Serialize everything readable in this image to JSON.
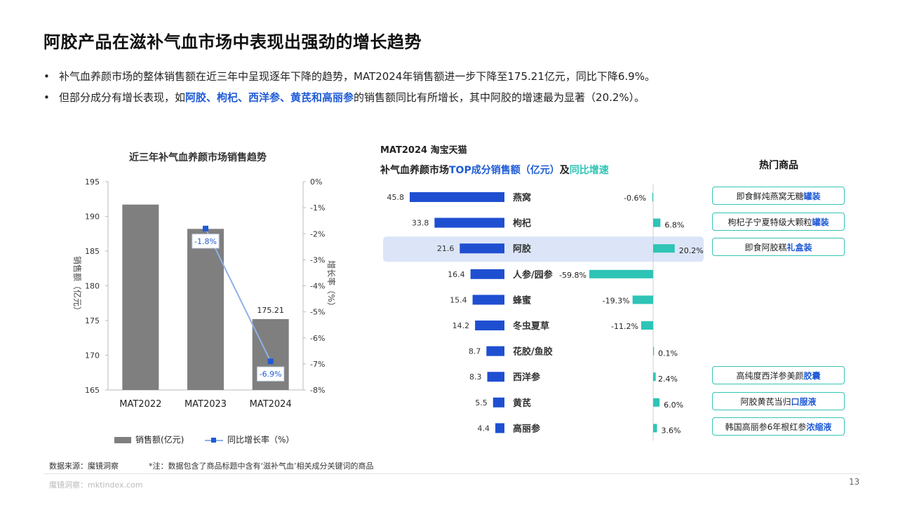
{
  "header": {
    "title": "阿胶产品在滋补气血市场中表现出强劲的增长趋势",
    "bullet1": "补气血养颜市场的整体销售额在近三年中呈现逐年下降的趋势，MAT2024年销售额进一步下降至175.21亿元，同比下降6.9%。",
    "bullet2_pre": "但部分成分有增长表现，如",
    "bullet2_hl": "阿胶、枸杞、西洋参、黄芪和高丽参",
    "bullet2_post": "的销售额同比有所增长，其中阿胶的增速最为显著（20.2%）。",
    "bullet_mark": "•"
  },
  "chart_data": [
    {
      "type": "bar",
      "title": "近三年补气血养颜市场销售趋势",
      "categories": [
        "MAT2022",
        "MAT2023",
        "MAT2024"
      ],
      "series": [
        {
          "name": "销售额(亿元)",
          "type": "bar",
          "values": [
            191.7,
            188.2,
            175.21
          ],
          "color": "#7f7f7f"
        },
        {
          "name": "同比增长率（%）",
          "type": "line",
          "values": [
            null,
            -1.8,
            -6.9
          ],
          "color": "#8eb1e8",
          "marker_color": "#1f5bd6"
        }
      ],
      "ylabel": "销售额（亿元）",
      "y2label": "增长率（%）",
      "ylim": [
        165,
        195
      ],
      "yticks": [
        195,
        190,
        185,
        180,
        175,
        170,
        165
      ],
      "y2lim": [
        -8,
        0
      ],
      "y2ticks": [
        "0%",
        "-1%",
        "-2%",
        "-3%",
        "-4%",
        "-5%",
        "-6%",
        "-7%",
        "-8%"
      ],
      "data_labels": {
        "bar_2": "175.21",
        "line_1": "-1.8%",
        "line_2": "-6.9%"
      }
    },
    {
      "type": "bar",
      "title": "MAT2024 淘宝天猫",
      "subtitle_pre": "补气血养颜市场",
      "subtitle_hl1": "TOP成分销售额（亿元）",
      "subtitle_mid": "及",
      "subtitle_hl2": "同比增速",
      "categories": [
        "燕窝",
        "枸杞",
        "阿胶",
        "人参/园参",
        "蜂蜜",
        "冬虫夏草",
        "花胶/鱼胶",
        "西洋参",
        "黄芪",
        "高丽参"
      ],
      "series": [
        {
          "name": "销售额",
          "values": [
            45.8,
            33.8,
            21.6,
            16.4,
            15.4,
            14.2,
            8.7,
            8.3,
            5.5,
            4.4
          ],
          "labels": [
            "45.8",
            "33.8",
            "21.6",
            "16.4",
            "15.4",
            "14.2",
            "8.7",
            "8.3",
            "5.5",
            "4.4"
          ],
          "color": "#1f4fd1"
        },
        {
          "name": "同比增速",
          "values": [
            -0.6,
            6.8,
            20.2,
            -59.8,
            -19.3,
            -11.2,
            0.1,
            2.4,
            6.0,
            3.6
          ],
          "labels": [
            "-0.6%",
            "6.8%",
            "20.2%",
            "-59.8%",
            "-19.3%",
            "-11.2%",
            "0.1%",
            "2.4%",
            "6.0%",
            "3.6%"
          ],
          "color": "#2ec4b6"
        }
      ],
      "highlight_category": "阿胶",
      "highlight_color": "#dbe5f7"
    }
  ],
  "hot_products": {
    "title": "热门商品",
    "items": [
      {
        "pre": "即食鲜炖燕窝无糖",
        "hl": "罐装",
        "row": 0
      },
      {
        "pre": "枸杞子宁夏特级大颗粒",
        "hl": "罐装",
        "row": 1
      },
      {
        "pre": "即食阿胶糕",
        "hl": "礼盒装",
        "row": 2
      },
      {
        "pre": "高纯度西洋参美颜",
        "hl": "胶囊",
        "row": 7
      },
      {
        "pre": "阿胶黄芪当归",
        "hl": "口服液",
        "row": 8
      },
      {
        "pre": "韩国高丽参6年根红参",
        "hl": "浓缩液",
        "row": 9
      }
    ]
  },
  "footer": {
    "source": "数据来源：魔镜洞察",
    "note": "*注：数据包含了商品标题中含有‘滋补气血’相关成分关键词的商品",
    "site": "魔镜洞察：mktindex.com",
    "page": "13"
  }
}
